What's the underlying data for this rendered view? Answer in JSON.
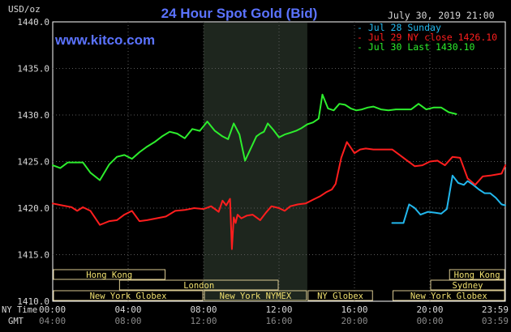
{
  "chart_data": {
    "type": "line",
    "title": "24 Hour Spot Gold (Bid)",
    "units_label": "USD/oz",
    "date_label": "July 30, 2019 21:00",
    "watermark": "www.kitco.com",
    "ylim": [
      1410,
      1440
    ],
    "y_ticks": [
      "1440.0",
      "1435.0",
      "1430.0",
      "1425.0",
      "1420.0",
      "1415.0",
      "1410.0"
    ],
    "x_ticks_ny": [
      "00:00",
      "04:00",
      "08:00",
      "12:00",
      "16:00",
      "20:00",
      "23:59"
    ],
    "x_ticks_gmt": [
      "04:00",
      "08:00",
      "12:00",
      "16:00",
      "20:00",
      "00:00",
      "03:59"
    ],
    "x_axis_labels": {
      "ny": "NY Time",
      "gmt": "GMT"
    },
    "highlight_hours": [
      8.0,
      13.5
    ],
    "legend": [
      {
        "text": "Jul 28 Sunday",
        "color": "#22b8ee"
      },
      {
        "text": "Jul 29 NY close 1426.10",
        "color": "#ff1e1e"
      },
      {
        "text": "Jul 30 Last 1430.10",
        "color": "#2dee2d"
      }
    ],
    "series": [
      {
        "id": "jul28",
        "color": "#22b8ee",
        "x": [
          18.0,
          18.6,
          18.9,
          19.2,
          19.5,
          19.9,
          20.3,
          20.6,
          20.9,
          21.2,
          21.5,
          21.8,
          22.0,
          22.3,
          22.6,
          22.9,
          23.2,
          23.5,
          23.8,
          24.0
        ],
        "y": [
          1418.4,
          1418.4,
          1420.4,
          1420.0,
          1419.3,
          1419.6,
          1419.5,
          1419.4,
          1419.9,
          1423.5,
          1422.7,
          1422.5,
          1422.9,
          1422.5,
          1422.0,
          1421.6,
          1421.6,
          1421.1,
          1420.4,
          1420.3
        ]
      },
      {
        "id": "jul29",
        "color": "#ff1e1e",
        "x": [
          0.0,
          0.5,
          1.0,
          1.3,
          1.6,
          2.0,
          2.5,
          3.0,
          3.4,
          3.8,
          4.2,
          4.6,
          5.0,
          5.5,
          6.0,
          6.5,
          7.0,
          7.5,
          8.0,
          8.4,
          8.8,
          9.0,
          9.2,
          9.4,
          9.5,
          9.6,
          9.7,
          9.8,
          10.0,
          10.3,
          10.6,
          11.0,
          11.3,
          11.6,
          12.0,
          12.3,
          12.6,
          13.0,
          13.4,
          13.8,
          14.2,
          14.5,
          14.8,
          15.0,
          15.3,
          15.6,
          15.8,
          16.0,
          16.3,
          16.6,
          17.0,
          17.5,
          18.0,
          18.4,
          18.8,
          19.2,
          19.6,
          20.0,
          20.4,
          20.8,
          21.2,
          21.6,
          22.0,
          22.4,
          22.8,
          23.2,
          23.5,
          23.8,
          24.0
        ],
        "y": [
          1420.5,
          1420.3,
          1420.1,
          1419.7,
          1420.1,
          1419.7,
          1418.2,
          1418.6,
          1418.7,
          1419.3,
          1419.7,
          1418.6,
          1418.7,
          1418.9,
          1419.1,
          1419.7,
          1419.8,
          1420.0,
          1419.9,
          1420.2,
          1419.6,
          1420.8,
          1420.3,
          1421.0,
          1415.6,
          1419.0,
          1418.4,
          1419.3,
          1418.9,
          1419.2,
          1419.3,
          1418.7,
          1419.5,
          1420.2,
          1420.0,
          1419.7,
          1420.2,
          1420.4,
          1420.5,
          1420.9,
          1421.3,
          1421.7,
          1422.0,
          1422.6,
          1425.4,
          1427.1,
          1426.5,
          1425.9,
          1426.3,
          1426.4,
          1426.3,
          1426.3,
          1426.3,
          1425.7,
          1425.1,
          1424.5,
          1424.6,
          1425.0,
          1425.1,
          1424.6,
          1425.5,
          1425.4,
          1423.2,
          1422.5,
          1423.4,
          1423.5,
          1423.6,
          1423.7,
          1424.6
        ]
      },
      {
        "id": "jul30",
        "color": "#2dee2d",
        "x": [
          0.0,
          0.4,
          0.8,
          1.2,
          1.6,
          2.0,
          2.5,
          3.0,
          3.4,
          3.8,
          4.2,
          4.6,
          5.0,
          5.4,
          5.8,
          6.2,
          6.6,
          7.0,
          7.4,
          7.8,
          8.2,
          8.6,
          9.0,
          9.3,
          9.6,
          9.9,
          10.2,
          10.5,
          10.8,
          11.0,
          11.2,
          11.4,
          11.7,
          12.0,
          12.3,
          12.6,
          12.9,
          13.2,
          13.5,
          13.8,
          14.1,
          14.3,
          14.6,
          14.9,
          15.2,
          15.5,
          15.8,
          16.1,
          16.4,
          16.7,
          17.0,
          17.4,
          17.8,
          18.2,
          18.6,
          19.0,
          19.4,
          19.8,
          20.2,
          20.6,
          21.0,
          21.4
        ],
        "y": [
          1424.6,
          1424.3,
          1424.9,
          1424.9,
          1424.9,
          1423.8,
          1423.0,
          1424.7,
          1425.5,
          1425.7,
          1425.3,
          1426.0,
          1426.6,
          1427.1,
          1427.7,
          1428.2,
          1428.0,
          1427.5,
          1428.5,
          1428.3,
          1429.3,
          1428.3,
          1427.7,
          1427.4,
          1429.1,
          1427.9,
          1425.1,
          1426.4,
          1427.7,
          1428.0,
          1428.2,
          1429.1,
          1428.4,
          1427.6,
          1427.9,
          1428.1,
          1428.3,
          1428.6,
          1429.0,
          1429.2,
          1429.6,
          1432.2,
          1430.7,
          1430.5,
          1431.2,
          1431.1,
          1430.7,
          1430.5,
          1430.6,
          1430.8,
          1430.9,
          1430.6,
          1430.5,
          1430.6,
          1430.6,
          1430.6,
          1431.2,
          1430.6,
          1430.8,
          1430.8,
          1430.3,
          1430.1
        ]
      }
    ],
    "sessions_row1": [
      {
        "label": "Hong Kong",
        "start": 0.0,
        "end": 6.0
      },
      {
        "label": "Hong Kong",
        "start": 21.0,
        "end": 24.0
      }
    ],
    "sessions_row2": [
      {
        "label": "London",
        "start": 3.5,
        "end": 12.0
      },
      {
        "label": "Sydney",
        "start": 20.0,
        "end": 24.0
      }
    ],
    "sessions_row3": [
      {
        "label": "New York Globex",
        "start": 0.0,
        "end": 8.0
      },
      {
        "label": "New York NYMEX",
        "start": 8.0,
        "end": 13.5
      },
      {
        "label": "NY Globex",
        "start": 13.5,
        "end": 17.0
      },
      {
        "label": "New York Globex",
        "start": 18.0,
        "end": 24.0
      }
    ]
  }
}
